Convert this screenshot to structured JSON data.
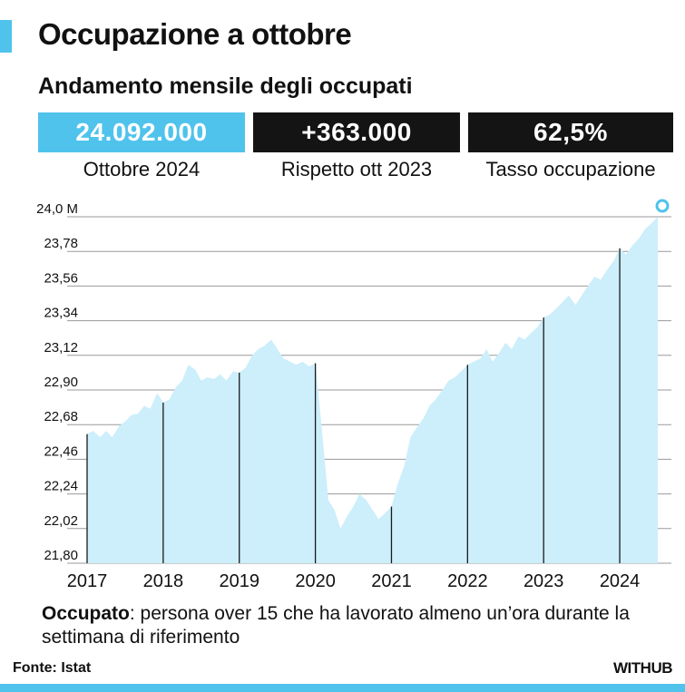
{
  "header": {
    "title": "Occupazione a ottobre",
    "subtitle": "Andamento mensile degli occupati"
  },
  "kpis": [
    {
      "value": "24.092.000",
      "label": "Ottobre 2024",
      "color": "#4fc3ec"
    },
    {
      "value": "+363.000",
      "label": "Rispetto ott 2023",
      "color": "#141414"
    },
    {
      "value": "62,5%",
      "label": "Tasso occupazione",
      "color": "#141414"
    }
  ],
  "footer": {
    "note_term": "Occupato",
    "note_text": ": persona over 15 che ha lavorato almeno un’ora durante la settimana di riferimento",
    "source": "Fonte: Istat",
    "logo": "WITHUB"
  },
  "chart_data": {
    "type": "area",
    "title": "",
    "xlabel": "",
    "ylabel": "",
    "ylim": [
      21.8,
      24.0
    ],
    "y_ticks": [
      21.8,
      22.02,
      22.24,
      22.46,
      22.68,
      22.9,
      23.12,
      23.34,
      23.56,
      23.78,
      24.0
    ],
    "y_tick_labels": [
      "21,80",
      "22,02",
      "22,24",
      "22,46",
      "22,68",
      "22,90",
      "23,12",
      "23,34",
      "23,56",
      "23,78",
      "24,0 M"
    ],
    "x_tick_labels": [
      "2017",
      "2018",
      "2019",
      "2020",
      "2021",
      "2022",
      "2023",
      "2024"
    ],
    "x_tick_positions": [
      2017.0,
      2018.0,
      2019.0,
      2020.0,
      2021.0,
      2022.0,
      2023.0,
      2024.0
    ],
    "x_range": [
      2017.0,
      2024.5
    ],
    "grid": true,
    "fill_color": "#cdeefb",
    "marker_color": "#4fc3ec",
    "series": [
      {
        "x": [
          2017.0,
          2017.08,
          2017.17,
          2017.25,
          2017.33,
          2017.42,
          2017.5,
          2017.58,
          2017.67,
          2017.75,
          2017.83,
          2017.92,
          2018.0,
          2018.08,
          2018.17,
          2018.25,
          2018.33,
          2018.42,
          2018.5,
          2018.58,
          2018.67,
          2018.75,
          2018.83,
          2018.92,
          2019.0,
          2019.08,
          2019.17,
          2019.25,
          2019.33,
          2019.42,
          2019.5,
          2019.58,
          2019.67,
          2019.75,
          2019.83,
          2019.92,
          2020.0,
          2020.08,
          2020.17,
          2020.25,
          2020.33,
          2020.42,
          2020.5,
          2020.58,
          2020.67,
          2020.75,
          2020.83,
          2020.92,
          2021.0,
          2021.08,
          2021.17,
          2021.25,
          2021.33,
          2021.42,
          2021.5,
          2021.58,
          2021.67,
          2021.75,
          2021.83,
          2021.92,
          2022.0,
          2022.08,
          2022.17,
          2022.25,
          2022.33,
          2022.42,
          2022.5,
          2022.58,
          2022.67,
          2022.75,
          2022.83,
          2022.92,
          2023.0,
          2023.08,
          2023.17,
          2023.25,
          2023.33,
          2023.42,
          2023.5,
          2023.58,
          2023.67,
          2023.75,
          2023.83,
          2023.92,
          2024.0,
          2024.08,
          2024.17,
          2024.25,
          2024.33,
          2024.42,
          2024.5
        ],
        "values": [
          22.62,
          22.64,
          22.6,
          22.64,
          22.6,
          22.67,
          22.7,
          22.74,
          22.75,
          22.8,
          22.78,
          22.88,
          22.82,
          22.84,
          22.92,
          22.96,
          23.06,
          23.03,
          22.96,
          22.98,
          22.97,
          23.0,
          22.96,
          23.02,
          23.01,
          23.04,
          23.12,
          23.16,
          23.18,
          23.22,
          23.16,
          23.1,
          23.08,
          23.06,
          23.08,
          23.05,
          23.07,
          22.68,
          22.2,
          22.14,
          22.02,
          22.1,
          22.16,
          22.24,
          22.2,
          22.14,
          22.08,
          22.12,
          22.16,
          22.3,
          22.42,
          22.6,
          22.66,
          22.72,
          22.8,
          22.84,
          22.9,
          22.96,
          22.98,
          23.02,
          23.06,
          23.08,
          23.1,
          23.16,
          23.08,
          23.14,
          23.2,
          23.16,
          23.24,
          23.22,
          23.26,
          23.3,
          23.36,
          23.38,
          23.42,
          23.46,
          23.5,
          23.44,
          23.5,
          23.56,
          23.62,
          23.6,
          23.66,
          23.72,
          23.8,
          23.76,
          23.82,
          23.86,
          23.92,
          23.96,
          24.0
        ]
      }
    ],
    "highlight_points": [
      {
        "x": 2017.0,
        "value": 22.62
      },
      {
        "x": 2018.0,
        "value": 22.82
      },
      {
        "x": 2019.0,
        "value": 23.01
      },
      {
        "x": 2020.0,
        "value": 23.07
      },
      {
        "x": 2021.0,
        "value": 22.16
      },
      {
        "x": 2022.0,
        "value": 23.06
      },
      {
        "x": 2023.0,
        "value": 23.36
      },
      {
        "x": 2024.0,
        "value": 23.8
      }
    ],
    "last_point": {
      "x": 2024.5,
      "value": 24.0
    }
  }
}
